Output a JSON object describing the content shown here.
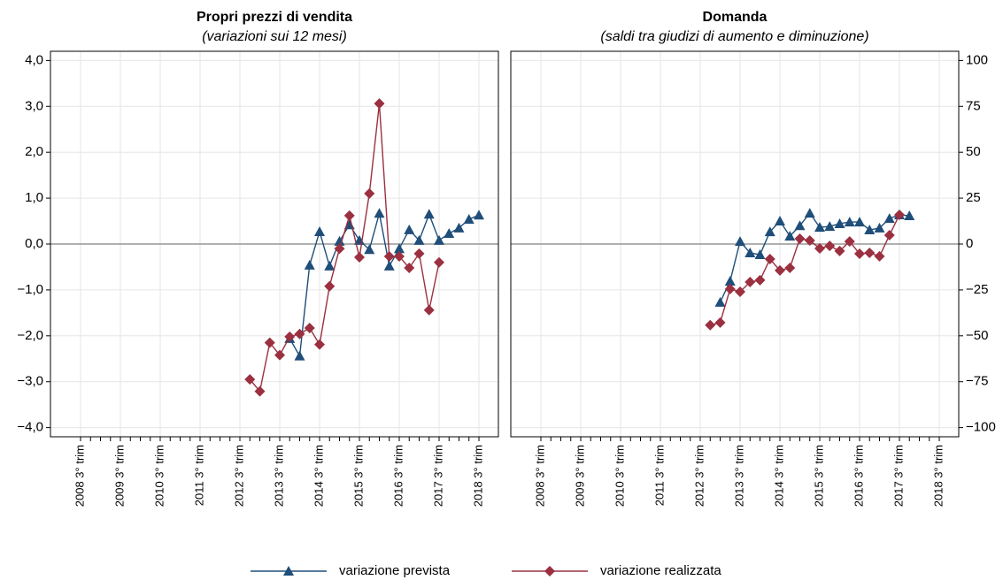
{
  "chart_data": [
    {
      "type": "line",
      "title": "Propri prezzi di vendita",
      "subtitle": "(variazioni sui 12 mesi)",
      "categories": [
        "2008 3° trim",
        null,
        null,
        null,
        "2009 3° trim",
        null,
        null,
        null,
        "2010 3° trim",
        null,
        null,
        null,
        "2011 3° trim",
        null,
        null,
        null,
        "2012 3° trim",
        null,
        null,
        null,
        "2013 3° trim",
        null,
        null,
        null,
        "2014 3° trim",
        null,
        null,
        null,
        "2015 3° trim",
        null,
        null,
        null,
        "2016 3° trim",
        null,
        null,
        null,
        "2017 3° trim",
        null,
        null,
        null,
        "2018 3° trim"
      ],
      "series": [
        {
          "name": "variazione prevista",
          "color": "#1f4e79",
          "marker": "triangle",
          "values": [
            null,
            null,
            null,
            null,
            null,
            null,
            null,
            null,
            null,
            null,
            null,
            null,
            null,
            null,
            null,
            null,
            null,
            null,
            null,
            null,
            null,
            -2.06,
            -2.44,
            -0.46,
            0.27,
            -0.48,
            0.06,
            0.42,
            0.08,
            -0.12,
            0.67,
            -0.48,
            -0.1,
            0.31,
            0.08,
            0.65,
            0.08,
            0.23,
            0.35,
            0.54,
            0.63
          ]
        },
        {
          "name": "variazione realizzata",
          "color": "#9b3040",
          "marker": "diamond",
          "values": [
            null,
            null,
            null,
            null,
            null,
            null,
            null,
            null,
            null,
            null,
            null,
            null,
            null,
            null,
            null,
            null,
            null,
            -2.95,
            -3.21,
            -2.15,
            -2.42,
            -2.02,
            -1.96,
            -1.83,
            -2.19,
            -0.92,
            -0.1,
            0.62,
            -0.29,
            1.1,
            3.06,
            -0.27,
            -0.27,
            -0.52,
            -0.21,
            -1.44,
            -0.4,
            null,
            null,
            null,
            null
          ]
        }
      ],
      "ylim": [
        -4.2,
        4.2
      ],
      "yticks": [
        {
          "value": -4,
          "label": "−4,0"
        },
        {
          "value": -3,
          "label": "−3,0"
        },
        {
          "value": -2,
          "label": "−2,0"
        },
        {
          "value": -1,
          "label": "−1,0"
        },
        {
          "value": 0,
          "label": "0,0"
        },
        {
          "value": 1,
          "label": "1,0"
        },
        {
          "value": 2,
          "label": "2,0"
        },
        {
          "value": 3,
          "label": "3,0"
        },
        {
          "value": 4,
          "label": "4,0"
        }
      ],
      "yaxis_side": "left",
      "grid": true
    },
    {
      "type": "line",
      "title": "Domanda",
      "subtitle": "(saldi tra giudizi di aumento e diminuzione)",
      "categories": [
        "2008 3° trim",
        null,
        null,
        null,
        "2009 3° trim",
        null,
        null,
        null,
        "2010 3° trim",
        null,
        null,
        null,
        "2011 3° trim",
        null,
        null,
        null,
        "2012 3° trim",
        null,
        null,
        null,
        "2013 3° trim",
        null,
        null,
        null,
        "2014 3° trim",
        null,
        null,
        null,
        "2015 3° trim",
        null,
        null,
        null,
        "2016 3° trim",
        null,
        null,
        null,
        "2017 3° trim",
        null,
        null,
        null,
        "2018 3° trim"
      ],
      "series": [
        {
          "color": "#1f4e79",
          "marker": "triangle",
          "values": [
            null,
            null,
            null,
            null,
            null,
            null,
            null,
            null,
            null,
            null,
            null,
            null,
            null,
            null,
            null,
            null,
            null,
            null,
            -31.7,
            -20.2,
            1.4,
            -4.8,
            -5.8,
            6.7,
            12.5,
            4.3,
            10,
            16.8,
            9.1,
            9.6,
            11.1,
            12,
            12,
            7.7,
            8.7,
            13.9,
            15.9,
            15.4,
            null,
            null,
            null
          ]
        },
        {
          "color": "#9b3040",
          "marker": "diamond",
          "values": [
            null,
            null,
            null,
            null,
            null,
            null,
            null,
            null,
            null,
            null,
            null,
            null,
            null,
            null,
            null,
            null,
            null,
            -44.2,
            -42.8,
            -24.5,
            -26,
            -20.7,
            -19.7,
            -8.2,
            -14.4,
            -13,
            2.9,
            1.9,
            -2.4,
            -1,
            -3.8,
            1.4,
            -5.3,
            -4.8,
            -6.7,
            4.8,
            15.9,
            null,
            null,
            null,
            null
          ]
        }
      ],
      "ylim": [
        -105,
        105
      ],
      "yticks": [
        {
          "value": -100,
          "label": "−100"
        },
        {
          "value": -75,
          "label": "−75"
        },
        {
          "value": -50,
          "label": "−50"
        },
        {
          "value": -25,
          "label": "−25"
        },
        0,
        25,
        50,
        75,
        100
      ],
      "yaxis_side": "right",
      "grid": true
    }
  ]
}
